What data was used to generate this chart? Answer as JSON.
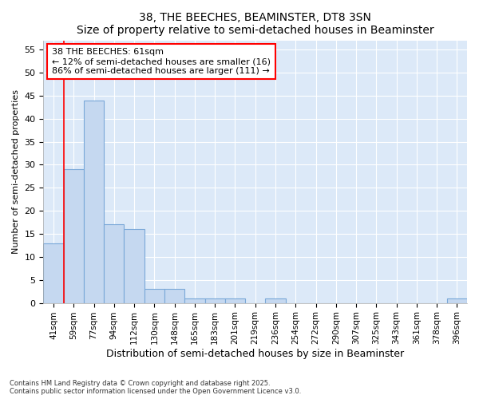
{
  "title": "38, THE BEECHES, BEAMINSTER, DT8 3SN",
  "subtitle": "Size of property relative to semi-detached houses in Beaminster",
  "xlabel": "Distribution of semi-detached houses by size in Beaminster",
  "ylabel": "Number of semi-detached properties",
  "categories": [
    "41sqm",
    "59sqm",
    "77sqm",
    "94sqm",
    "112sqm",
    "130sqm",
    "148sqm",
    "165sqm",
    "183sqm",
    "201sqm",
    "219sqm",
    "236sqm",
    "254sqm",
    "272sqm",
    "290sqm",
    "307sqm",
    "325sqm",
    "343sqm",
    "361sqm",
    "378sqm",
    "396sqm"
  ],
  "values": [
    13,
    29,
    44,
    17,
    16,
    3,
    3,
    1,
    1,
    1,
    0,
    1,
    0,
    0,
    0,
    0,
    0,
    0,
    0,
    0,
    1
  ],
  "bar_color": "#c5d8f0",
  "bar_edge_color": "#7aa8d8",
  "red_line_x": 0.5,
  "annotation_title": "38 THE BEECHES: 61sqm",
  "annotation_line1": "← 12% of semi-detached houses are smaller (16)",
  "annotation_line2": "86% of semi-detached houses are larger (111) →",
  "ylim": [
    0,
    57
  ],
  "yticks": [
    0,
    5,
    10,
    15,
    20,
    25,
    30,
    35,
    40,
    45,
    50,
    55
  ],
  "footer1": "Contains HM Land Registry data © Crown copyright and database right 2025.",
  "footer2": "Contains public sector information licensed under the Open Government Licence v3.0.",
  "fig_bg_color": "#ffffff",
  "plot_bg_color": "#dce9f8",
  "grid_color": "#ffffff"
}
